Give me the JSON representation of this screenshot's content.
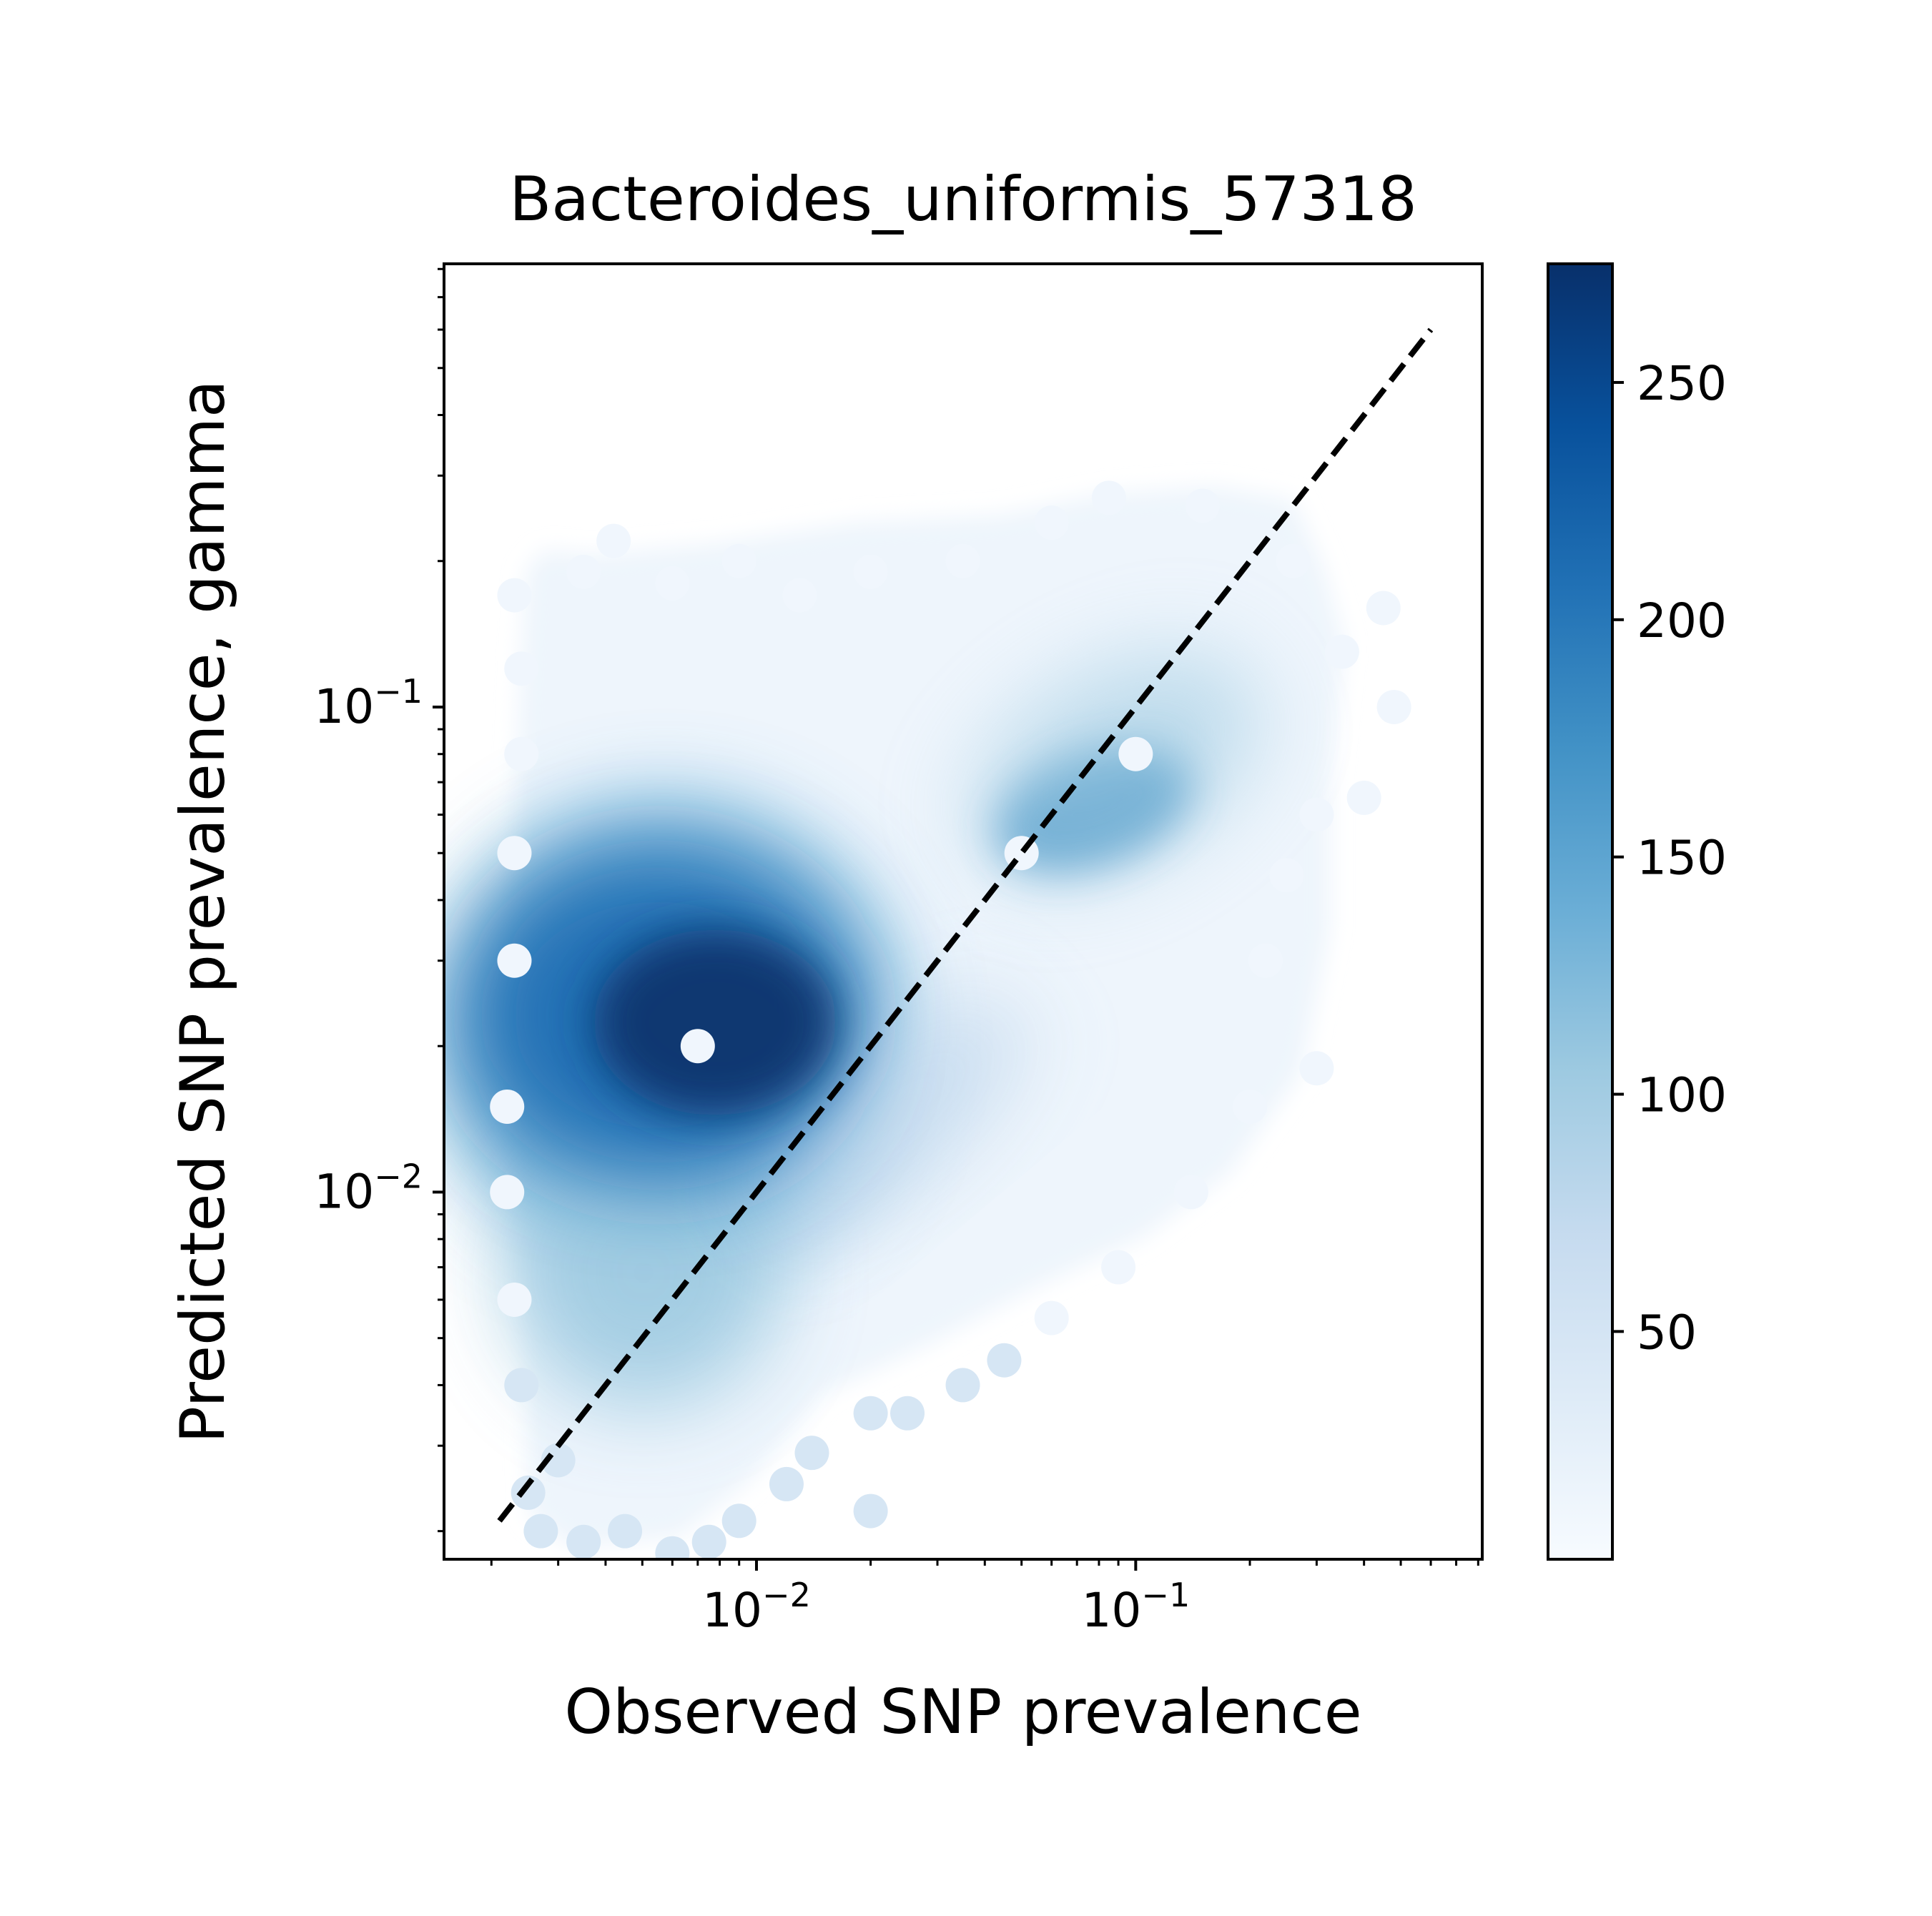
{
  "chart_data": {
    "type": "scatter",
    "title": "Bacteroides_uniformis_57318",
    "xlabel": "Observed SNP prevalence",
    "ylabel": "Predicted SNP prevalence, gamma",
    "xscale": "log",
    "yscale": "log",
    "xlim": [
      0.0015,
      0.82
    ],
    "ylim": [
      0.00175,
      0.82
    ],
    "x_major_ticks": [
      {
        "value": 0.01,
        "base": "10",
        "exp": "−2"
      },
      {
        "value": 0.1,
        "base": "10",
        "exp": "−1"
      }
    ],
    "y_major_ticks": [
      {
        "value": 0.01,
        "base": "10",
        "exp": "−2"
      },
      {
        "value": 0.1,
        "base": "10",
        "exp": "−1"
      }
    ],
    "reference_line": {
      "style": "dashed",
      "color": "#000000",
      "from": [
        0.0021,
        0.0021
      ],
      "to": [
        0.6,
        0.6
      ]
    },
    "density_points": [
      {
        "x": 0.0023,
        "y": 0.17
      },
      {
        "x": 0.0035,
        "y": 0.19
      },
      {
        "x": 0.0042,
        "y": 0.22
      },
      {
        "x": 0.006,
        "y": 0.18
      },
      {
        "x": 0.009,
        "y": 0.2
      },
      {
        "x": 0.013,
        "y": 0.17
      },
      {
        "x": 0.02,
        "y": 0.19
      },
      {
        "x": 0.035,
        "y": 0.2
      },
      {
        "x": 0.06,
        "y": 0.24
      },
      {
        "x": 0.085,
        "y": 0.27
      },
      {
        "x": 0.15,
        "y": 0.26
      },
      {
        "x": 0.26,
        "y": 0.2
      },
      {
        "x": 0.35,
        "y": 0.13
      },
      {
        "x": 0.45,
        "y": 0.16
      },
      {
        "x": 0.48,
        "y": 0.1
      },
      {
        "x": 0.4,
        "y": 0.065
      },
      {
        "x": 0.3,
        "y": 0.06
      },
      {
        "x": 0.25,
        "y": 0.045
      },
      {
        "x": 0.22,
        "y": 0.03
      },
      {
        "x": 0.3,
        "y": 0.018
      },
      {
        "x": 0.2,
        "y": 0.015
      },
      {
        "x": 0.14,
        "y": 0.01
      },
      {
        "x": 0.09,
        "y": 0.007
      },
      {
        "x": 0.06,
        "y": 0.0055
      },
      {
        "x": 0.045,
        "y": 0.0045
      },
      {
        "x": 0.035,
        "y": 0.004
      },
      {
        "x": 0.025,
        "y": 0.0035
      },
      {
        "x": 0.02,
        "y": 0.0035
      },
      {
        "x": 0.02,
        "y": 0.0022
      },
      {
        "x": 0.014,
        "y": 0.0029
      },
      {
        "x": 0.012,
        "y": 0.0025
      },
      {
        "x": 0.009,
        "y": 0.0021
      },
      {
        "x": 0.0075,
        "y": 0.0019
      },
      {
        "x": 0.006,
        "y": 0.0018
      },
      {
        "x": 0.0045,
        "y": 0.002
      },
      {
        "x": 0.0035,
        "y": 0.0019
      },
      {
        "x": 0.0027,
        "y": 0.002
      },
      {
        "x": 0.0025,
        "y": 0.0024
      },
      {
        "x": 0.003,
        "y": 0.0028
      },
      {
        "x": 0.0024,
        "y": 0.004
      },
      {
        "x": 0.0023,
        "y": 0.006
      },
      {
        "x": 0.0022,
        "y": 0.01
      },
      {
        "x": 0.0022,
        "y": 0.015
      },
      {
        "x": 0.0023,
        "y": 0.03
      },
      {
        "x": 0.0023,
        "y": 0.05
      },
      {
        "x": 0.0024,
        "y": 0.08
      },
      {
        "x": 0.0024,
        "y": 0.12
      },
      {
        "x": 0.007,
        "y": 0.02
      },
      {
        "x": 0.05,
        "y": 0.05
      },
      {
        "x": 0.1,
        "y": 0.08
      }
    ],
    "colorbar": {
      "colormap": "Blues",
      "range": [
        2,
        275
      ],
      "ticks": [
        50,
        100,
        150,
        200,
        250
      ],
      "tick_labels": [
        "50",
        "100",
        "150",
        "200",
        "250"
      ]
    }
  }
}
